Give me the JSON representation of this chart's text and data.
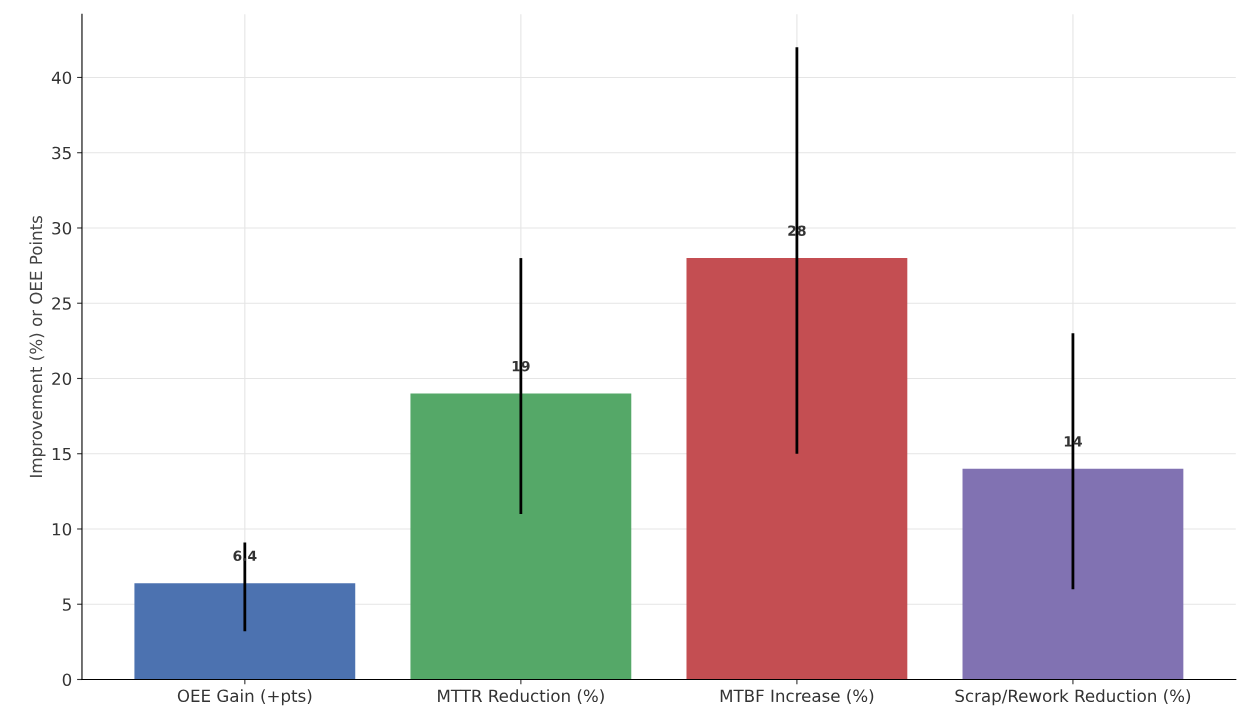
{
  "chart_data": {
    "type": "bar",
    "ylabel": "Improvement (%) or OEE Points",
    "categories": [
      "OEE Gain (+pts)",
      "MTTR Reduction (%)",
      "MTBF Increase (%)",
      "Scrap/Rework Reduction (%)"
    ],
    "values": [
      6.4,
      19,
      28,
      14
    ],
    "colors": [
      "#4c72b0",
      "#55a868",
      "#c44e52",
      "#8172b2"
    ],
    "errors": [
      [
        3.2,
        9.1
      ],
      [
        11,
        28
      ],
      [
        15,
        42
      ],
      [
        6,
        23
      ]
    ],
    "data_labels": true,
    "ylim": [
      0,
      44.2
    ],
    "yticks": [
      0,
      5,
      10,
      15,
      20,
      25,
      30,
      35,
      40
    ],
    "grid": true
  }
}
